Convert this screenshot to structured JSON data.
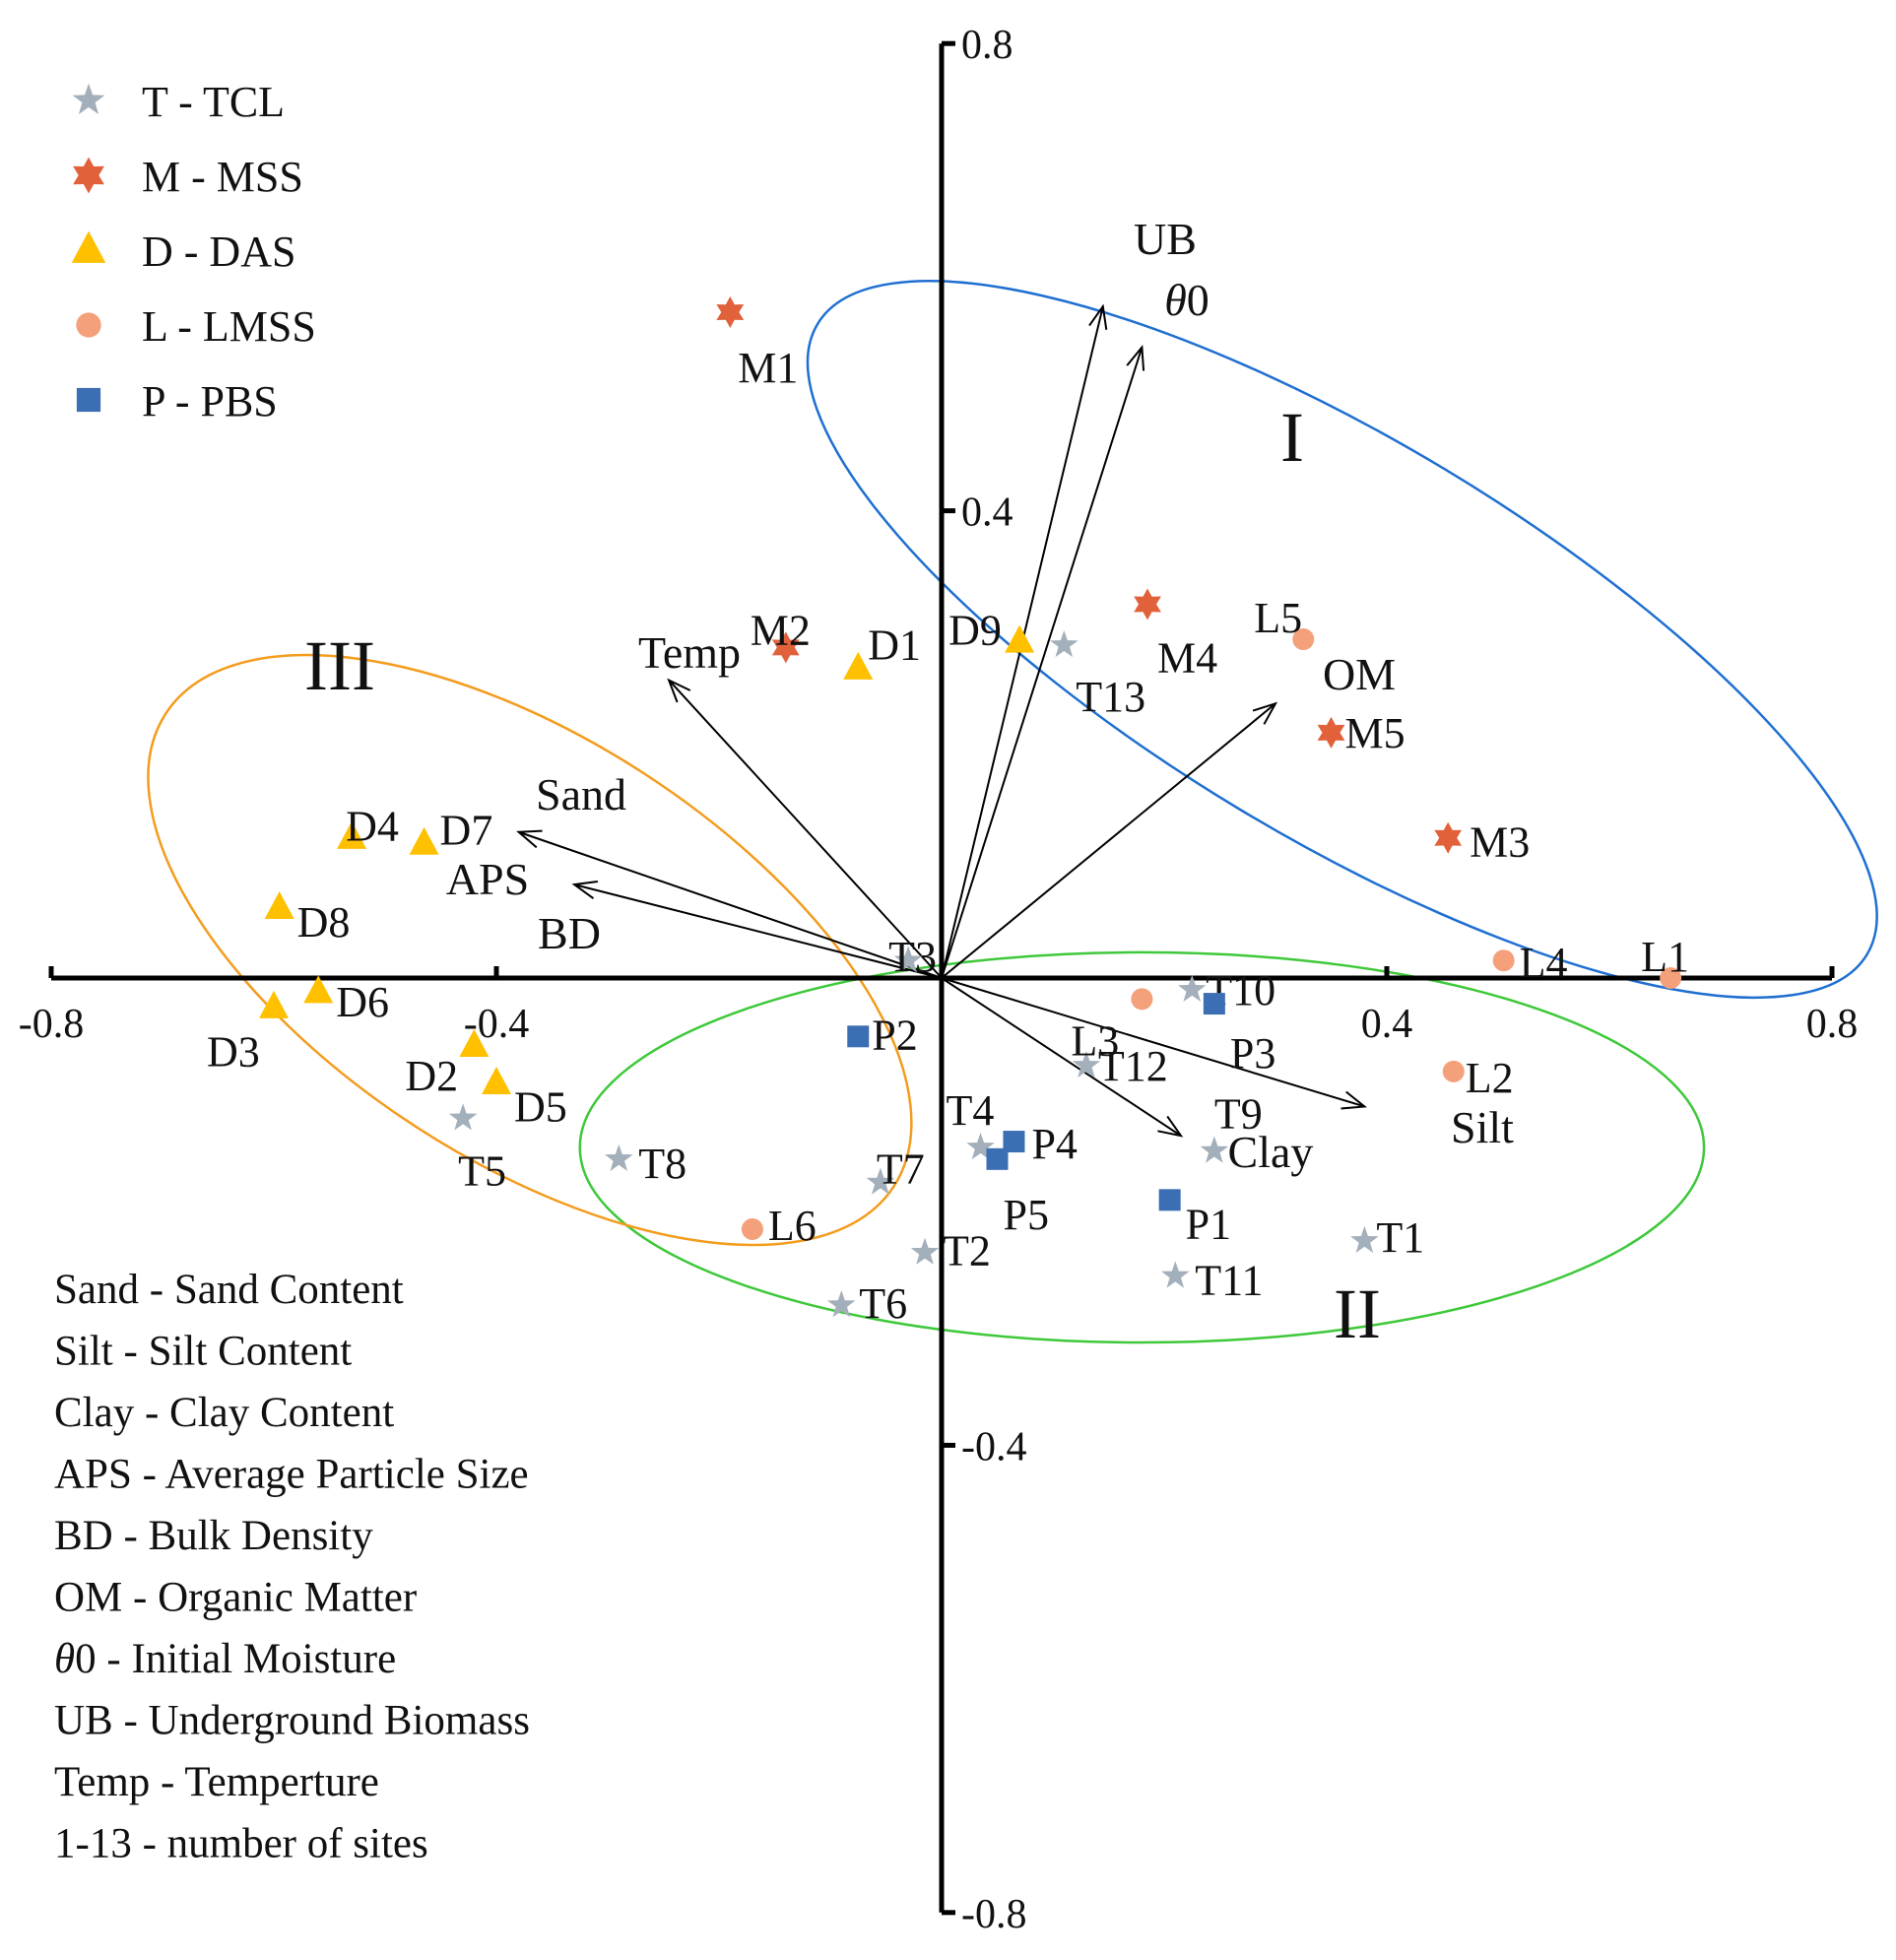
{
  "chart_data": {
    "type": "scatter",
    "subtype": "biplot",
    "title": "",
    "xlim": [
      -0.8,
      0.8
    ],
    "ylim": [
      -0.8,
      0.8
    ],
    "x_ticks": [
      {
        "value": -0.8,
        "label": "-0.8"
      },
      {
        "value": -0.4,
        "label": "-0.4"
      },
      {
        "value": 0.4,
        "label": "0.4"
      },
      {
        "value": 0.8,
        "label": "0.8"
      }
    ],
    "y_ticks": [
      {
        "value": 0.8,
        "label": "0.8"
      },
      {
        "value": 0.4,
        "label": "0.4"
      },
      {
        "value": -0.4,
        "label": "-0.4"
      },
      {
        "value": -0.8,
        "label": "-0.8"
      }
    ],
    "legend": [
      {
        "key": "T",
        "label": "T - TCL",
        "marker": "star",
        "color": "#a3afba"
      },
      {
        "key": "M",
        "label": "M - MSS",
        "marker": "hexstar",
        "color": "#e0613a"
      },
      {
        "key": "D",
        "label": "D - DAS",
        "marker": "triangle",
        "color": "#ffc000"
      },
      {
        "key": "L",
        "label": "L - LMSS",
        "marker": "circle",
        "color": "#f4a07a"
      },
      {
        "key": "P",
        "label": "P - PBS",
        "marker": "square",
        "color": "#3b6eb3"
      }
    ],
    "series": [
      {
        "name": "T - TCL",
        "group": "T",
        "points": [
          {
            "label": "T1",
            "x": 0.38,
            "y": -0.225
          },
          {
            "label": "T2",
            "x": -0.015,
            "y": -0.235
          },
          {
            "label": "T3",
            "x": -0.03,
            "y": 0.015
          },
          {
            "label": "T4",
            "x": 0.035,
            "y": -0.145
          },
          {
            "label": "T5",
            "x": -0.43,
            "y": -0.12
          },
          {
            "label": "T6",
            "x": -0.09,
            "y": -0.28
          },
          {
            "label": "T7",
            "x": -0.055,
            "y": -0.175
          },
          {
            "label": "T8",
            "x": -0.29,
            "y": -0.155
          },
          {
            "label": "T9",
            "x": 0.245,
            "y": -0.148
          },
          {
            "label": "T10",
            "x": 0.225,
            "y": -0.01
          },
          {
            "label": "T11",
            "x": 0.21,
            "y": -0.255
          },
          {
            "label": "T12",
            "x": 0.13,
            "y": -0.075
          },
          {
            "label": "T13",
            "x": 0.11,
            "y": 0.285
          }
        ]
      },
      {
        "name": "M - MSS",
        "group": "M",
        "points": [
          {
            "label": "M1",
            "x": -0.19,
            "y": 0.57
          },
          {
            "label": "M2",
            "x": -0.14,
            "y": 0.283
          },
          {
            "label": "M3",
            "x": 0.455,
            "y": 0.12
          },
          {
            "label": "M4",
            "x": 0.185,
            "y": 0.32
          },
          {
            "label": "M5",
            "x": 0.35,
            "y": 0.21
          }
        ]
      },
      {
        "name": "D - DAS",
        "group": "D",
        "points": [
          {
            "label": "D1",
            "x": -0.075,
            "y": 0.265
          },
          {
            "label": "D2",
            "x": -0.42,
            "y": -0.058
          },
          {
            "label": "D3",
            "x": -0.6,
            "y": -0.025
          },
          {
            "label": "D4",
            "x": -0.53,
            "y": 0.12
          },
          {
            "label": "D5",
            "x": -0.4,
            "y": -0.09
          },
          {
            "label": "D6",
            "x": -0.56,
            "y": -0.012
          },
          {
            "label": "D7",
            "x": -0.465,
            "y": 0.115
          },
          {
            "label": "D8",
            "x": -0.595,
            "y": 0.06
          },
          {
            "label": "D9",
            "x": 0.07,
            "y": 0.288
          }
        ]
      },
      {
        "name": "L - LMSS",
        "group": "L",
        "points": [
          {
            "label": "L1",
            "x": 0.655,
            "y": 0.0
          },
          {
            "label": "L2",
            "x": 0.46,
            "y": -0.08
          },
          {
            "label": "L3",
            "x": 0.18,
            "y": -0.018
          },
          {
            "label": "L4",
            "x": 0.505,
            "y": 0.015
          },
          {
            "label": "L5",
            "x": 0.325,
            "y": 0.29
          },
          {
            "label": "L6",
            "x": -0.17,
            "y": -0.215
          }
        ]
      },
      {
        "name": "P - PBS",
        "group": "P",
        "points": [
          {
            "label": "P1",
            "x": 0.205,
            "y": -0.19
          },
          {
            "label": "P2",
            "x": -0.075,
            "y": -0.05
          },
          {
            "label": "P3",
            "x": 0.245,
            "y": -0.022
          },
          {
            "label": "P4",
            "x": 0.065,
            "y": -0.14
          },
          {
            "label": "P5",
            "x": 0.05,
            "y": -0.155
          }
        ]
      }
    ],
    "vectors": [
      {
        "label": "UB",
        "x": 0.145,
        "y": 0.575
      },
      {
        "label": "θ0",
        "x": 0.18,
        "y": 0.54
      },
      {
        "label": "Temp",
        "x": -0.245,
        "y": 0.255
      },
      {
        "label": "Sand",
        "x": -0.38,
        "y": 0.125
      },
      {
        "label": "APS",
        "x": -0.33,
        "y": 0.08
      },
      {
        "label": "OM",
        "x": 0.3,
        "y": 0.235
      },
      {
        "label": "Clay",
        "x": 0.215,
        "y": -0.135
      },
      {
        "label": "Silt",
        "x": 0.38,
        "y": -0.11
      }
    ],
    "extra_labels": [
      {
        "label": "BD"
      }
    ],
    "regions": [
      {
        "label": "I",
        "color": "#1f6fd1",
        "center": [
          0.36,
          0.29
        ],
        "rx": 0.55,
        "ry": 0.17,
        "angle_deg": 31
      },
      {
        "label": "II",
        "color": "#3ec83a",
        "center": [
          0.18,
          -0.145
        ],
        "rx": 0.505,
        "ry": 0.167,
        "angle_deg": 0
      },
      {
        "label": "III",
        "color": "#f39c1e",
        "center": [
          -0.37,
          0.024
        ],
        "rx": 0.39,
        "ry": 0.18,
        "angle_deg": 33
      }
    ],
    "abbreviations": [
      "Sand - Sand Content",
      "Silt - Silt Content",
      "Clay - Clay Content",
      "APS - Average Particle Size",
      "BD - Bulk Density",
      "OM - Organic Matter",
      "θ0 - Initial Moisture",
      "UB - Underground Biomass",
      "Temp - Temperture",
      "1-13 - number of sites"
    ]
  }
}
